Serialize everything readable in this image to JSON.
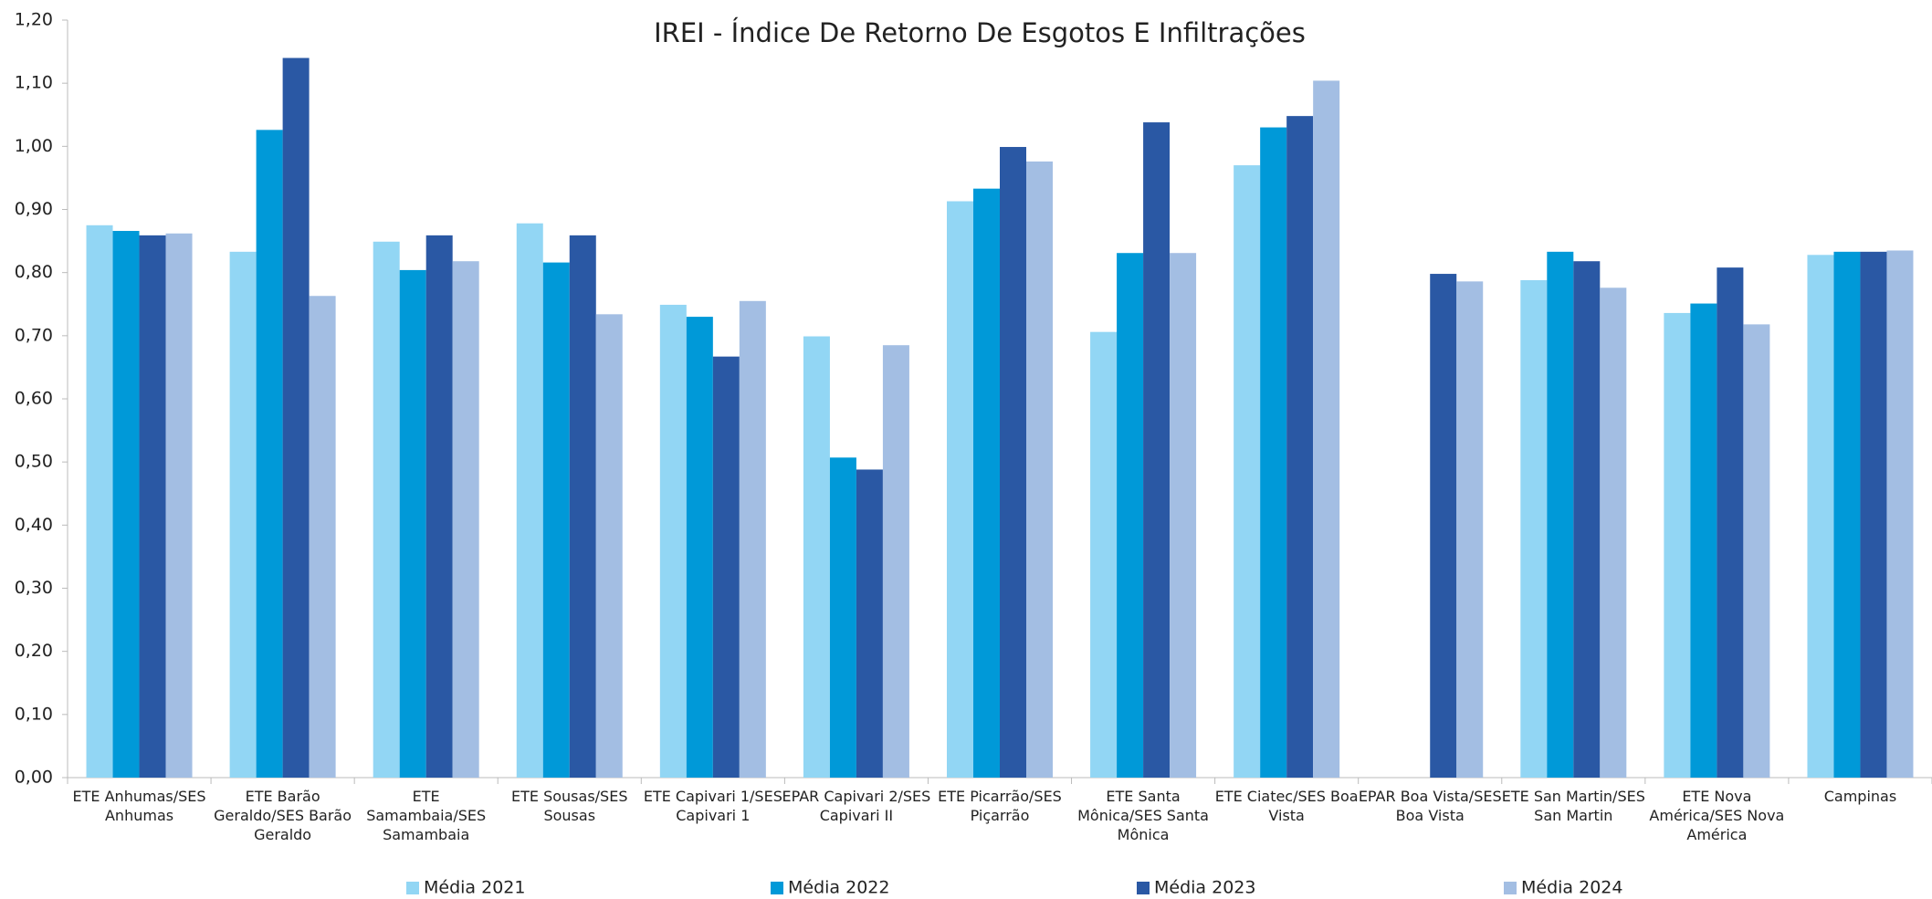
{
  "chart_data": {
    "type": "bar",
    "title": "IREI - Índice De Retorno De Esgotos E Infiltrações",
    "categories": [
      "ETE Anhumas/SES Anhumas",
      "ETE Barão Geraldo/SES Barão Geraldo",
      "ETE Samambaia/SES Samambaia",
      "ETE Sousas/SES Sousas",
      "ETE Capivari 1/SES Capivari 1",
      "EPAR Capivari 2/SES Capivari II",
      "ETE Picarrão/SES Piçarrão",
      "ETE Santa Mônica/SES Santa Mônica",
      "ETE Ciatec/SES Boa Vista",
      "EPAR Boa Vista/SES Boa Vista",
      "ETE San Martin/SES San Martin",
      "ETE Nova América/SES Nova América",
      "Campinas"
    ],
    "series": [
      {
        "name": "Média 2021",
        "color": "#92d6f4",
        "values": [
          0.875,
          0.833,
          0.849,
          0.878,
          0.749,
          0.699,
          0.913,
          0.706,
          0.97,
          null,
          0.788,
          0.736,
          0.828
        ]
      },
      {
        "name": "Média 2022",
        "color": "#0099d8",
        "values": [
          0.866,
          1.026,
          0.804,
          0.816,
          0.73,
          0.507,
          0.933,
          0.831,
          1.03,
          null,
          0.833,
          0.751,
          0.833
        ]
      },
      {
        "name": "Média 2023",
        "color": "#2a58a4",
        "values": [
          0.859,
          1.14,
          0.859,
          0.859,
          0.667,
          0.488,
          0.999,
          1.038,
          1.048,
          0.798,
          0.818,
          0.808,
          0.833
        ]
      },
      {
        "name": "Média 2024",
        "color": "#a3bee3",
        "values": [
          0.862,
          0.763,
          0.818,
          0.734,
          0.755,
          0.685,
          0.976,
          0.831,
          1.104,
          0.786,
          0.776,
          0.718,
          0.835
        ]
      }
    ],
    "ylim": [
      0,
      1.2
    ],
    "yticks": [
      {
        "value": 0,
        "label": "0,00"
      },
      {
        "value": 0.1,
        "label": "0,10"
      },
      {
        "value": 0.2,
        "label": "0,20"
      },
      {
        "value": 0.3,
        "label": "0,30"
      },
      {
        "value": 0.4,
        "label": "0,40"
      },
      {
        "value": 0.5,
        "label": "0,50"
      },
      {
        "value": 0.6,
        "label": "0,60"
      },
      {
        "value": 0.7,
        "label": "0,70"
      },
      {
        "value": 0.8,
        "label": "0,80"
      },
      {
        "value": 0.9,
        "label": "0,90"
      },
      {
        "value": 1.0,
        "label": "1,00"
      },
      {
        "value": 1.1,
        "label": "1,10"
      },
      {
        "value": 1.2,
        "label": "1,20"
      }
    ],
    "title_color": "#1a9ad6",
    "legend": "bottom"
  }
}
